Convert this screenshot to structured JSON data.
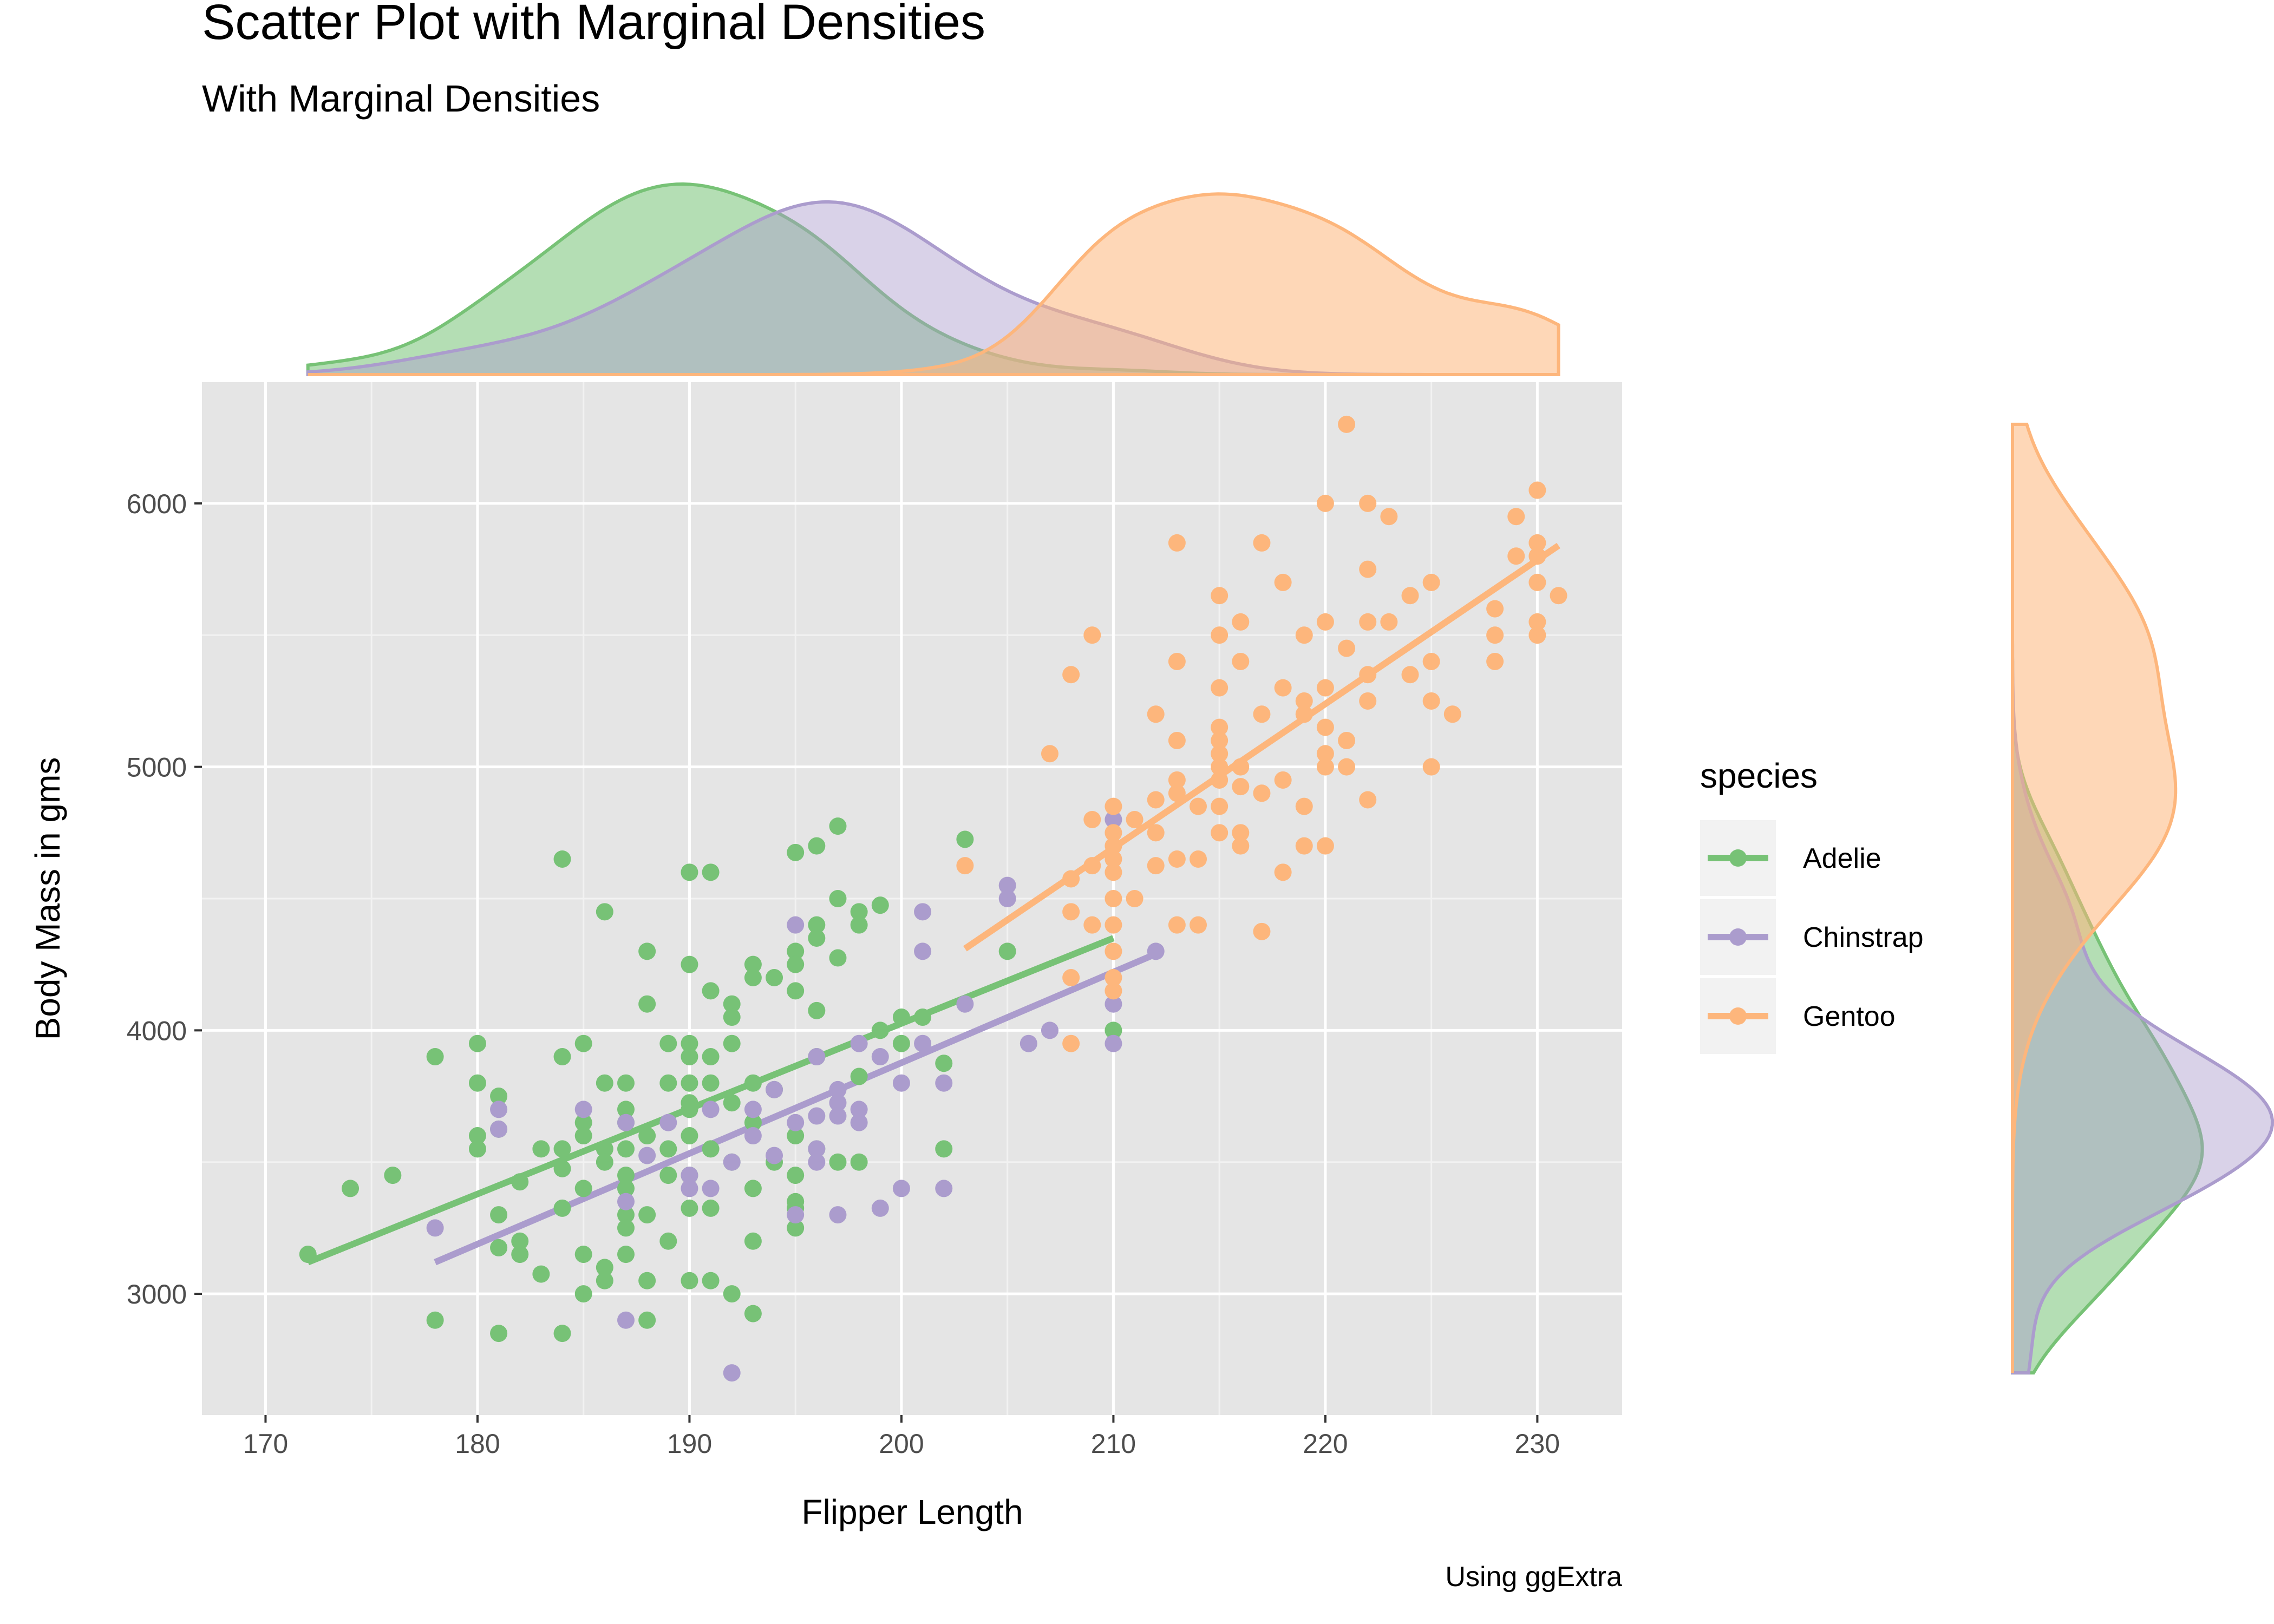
{
  "chart_data": {
    "type": "scatter",
    "title": "Scatter Plot with Marginal Densities",
    "subtitle": "With Marginal Densities",
    "xlabel": "Flipper Length",
    "ylabel": "Body Mass in gms",
    "caption": "Using ggExtra",
    "xlim": [
      167,
      234
    ],
    "ylim": [
      2540,
      6460
    ],
    "x_ticks": [
      170,
      180,
      190,
      200,
      210,
      220,
      230
    ],
    "y_ticks": [
      3000,
      4000,
      5000,
      6000
    ],
    "grid": true,
    "legend": {
      "title": "species",
      "placement": "right",
      "entries": [
        "Adelie",
        "Chinstrap",
        "Gentoo"
      ]
    },
    "marginal": "density",
    "series": [
      {
        "name": "Adelie",
        "color": "#77c276",
        "fill": "rgba(119,194,118,0.55)",
        "trend": [
          [
            172,
            3120
          ],
          [
            210,
            4350
          ]
        ],
        "points": [
          [
            172,
            3150
          ],
          [
            174,
            3400
          ],
          [
            176,
            3450
          ],
          [
            178,
            3900
          ],
          [
            178,
            2900
          ],
          [
            180,
            3950
          ],
          [
            180,
            3800
          ],
          [
            180,
            3600
          ],
          [
            180,
            3550
          ],
          [
            181,
            3750
          ],
          [
            181,
            3625
          ],
          [
            181,
            3300
          ],
          [
            181,
            3175
          ],
          [
            181,
            2850
          ],
          [
            182,
            3200
          ],
          [
            182,
            3150
          ],
          [
            182,
            3425
          ],
          [
            183,
            3550
          ],
          [
            183,
            3075
          ],
          [
            184,
            4650
          ],
          [
            184,
            3900
          ],
          [
            184,
            3475
          ],
          [
            184,
            3550
          ],
          [
            184,
            3325
          ],
          [
            184,
            2850
          ],
          [
            185,
            3950
          ],
          [
            185,
            3650
          ],
          [
            185,
            3600
          ],
          [
            185,
            3400
          ],
          [
            185,
            3150
          ],
          [
            185,
            3000
          ],
          [
            186,
            4450
          ],
          [
            186,
            3800
          ],
          [
            186,
            3550
          ],
          [
            186,
            3500
          ],
          [
            186,
            3100
          ],
          [
            186,
            3050
          ],
          [
            187,
            3800
          ],
          [
            187,
            3700
          ],
          [
            187,
            3650
          ],
          [
            187,
            3550
          ],
          [
            187,
            3450
          ],
          [
            187,
            3400
          ],
          [
            187,
            3300
          ],
          [
            187,
            3250
          ],
          [
            187,
            3150
          ],
          [
            188,
            4300
          ],
          [
            188,
            4100
          ],
          [
            188,
            3600
          ],
          [
            188,
            3300
          ],
          [
            188,
            3050
          ],
          [
            188,
            2900
          ],
          [
            189,
            3950
          ],
          [
            189,
            3800
          ],
          [
            189,
            3550
          ],
          [
            189,
            3450
          ],
          [
            189,
            3200
          ],
          [
            190,
            4600
          ],
          [
            190,
            4250
          ],
          [
            190,
            3950
          ],
          [
            190,
            3900
          ],
          [
            190,
            3800
          ],
          [
            190,
            3725
          ],
          [
            190,
            3700
          ],
          [
            190,
            3600
          ],
          [
            190,
            3450
          ],
          [
            190,
            3325
          ],
          [
            190,
            3050
          ],
          [
            191,
            4600
          ],
          [
            191,
            4150
          ],
          [
            191,
            3900
          ],
          [
            191,
            3800
          ],
          [
            191,
            3550
          ],
          [
            191,
            3325
          ],
          [
            191,
            3050
          ],
          [
            192,
            4100
          ],
          [
            192,
            4050
          ],
          [
            192,
            3950
          ],
          [
            192,
            3725
          ],
          [
            192,
            3500
          ],
          [
            192,
            3000
          ],
          [
            193,
            4250
          ],
          [
            193,
            4200
          ],
          [
            193,
            3800
          ],
          [
            193,
            3650
          ],
          [
            193,
            3400
          ],
          [
            193,
            3200
          ],
          [
            193,
            2925
          ],
          [
            194,
            4200
          ],
          [
            194,
            3775
          ],
          [
            194,
            3500
          ],
          [
            195,
            4675
          ],
          [
            195,
            4300
          ],
          [
            195,
            4250
          ],
          [
            195,
            4150
          ],
          [
            195,
            3600
          ],
          [
            195,
            3450
          ],
          [
            195,
            3350
          ],
          [
            195,
            3325
          ],
          [
            195,
            3250
          ],
          [
            196,
            4700
          ],
          [
            196,
            4400
          ],
          [
            196,
            4350
          ],
          [
            196,
            4075
          ],
          [
            196,
            3900
          ],
          [
            196,
            3550
          ],
          [
            197,
            4775
          ],
          [
            197,
            4500
          ],
          [
            197,
            4275
          ],
          [
            197,
            3500
          ],
          [
            198,
            4450
          ],
          [
            198,
            4400
          ],
          [
            198,
            3825
          ],
          [
            198,
            3500
          ],
          [
            199,
            4475
          ],
          [
            199,
            4000
          ],
          [
            200,
            4050
          ],
          [
            200,
            3950
          ],
          [
            201,
            4050
          ],
          [
            202,
            3875
          ],
          [
            202,
            3550
          ],
          [
            203,
            4725
          ],
          [
            205,
            4300
          ],
          [
            210,
            4000
          ]
        ]
      },
      {
        "name": "Chinstrap",
        "color": "#ab9ccd",
        "fill": "rgba(171,156,205,0.45)",
        "trend": [
          [
            178,
            3120
          ],
          [
            212,
            4290
          ]
        ],
        "points": [
          [
            178,
            3250
          ],
          [
            181,
            3700
          ],
          [
            181,
            3625
          ],
          [
            185,
            3700
          ],
          [
            187,
            3650
          ],
          [
            187,
            3350
          ],
          [
            187,
            2900
          ],
          [
            188,
            3525
          ],
          [
            189,
            3650
          ],
          [
            190,
            3450
          ],
          [
            190,
            3400
          ],
          [
            191,
            3700
          ],
          [
            191,
            3400
          ],
          [
            192,
            3500
          ],
          [
            192,
            2700
          ],
          [
            193,
            3700
          ],
          [
            193,
            3600
          ],
          [
            194,
            3775
          ],
          [
            194,
            3525
          ],
          [
            195,
            4400
          ],
          [
            195,
            3650
          ],
          [
            195,
            3300
          ],
          [
            196,
            3900
          ],
          [
            196,
            3675
          ],
          [
            196,
            3550
          ],
          [
            196,
            3500
          ],
          [
            197,
            3775
          ],
          [
            197,
            3725
          ],
          [
            197,
            3675
          ],
          [
            197,
            3300
          ],
          [
            198,
            3950
          ],
          [
            198,
            3700
          ],
          [
            198,
            3650
          ],
          [
            199,
            3900
          ],
          [
            199,
            3325
          ],
          [
            200,
            3800
          ],
          [
            200,
            3400
          ],
          [
            201,
            4450
          ],
          [
            201,
            4300
          ],
          [
            201,
            3950
          ],
          [
            202,
            3800
          ],
          [
            202,
            3400
          ],
          [
            203,
            4100
          ],
          [
            205,
            4550
          ],
          [
            205,
            4500
          ],
          [
            206,
            3950
          ],
          [
            207,
            4000
          ],
          [
            210,
            4800
          ],
          [
            210,
            4100
          ],
          [
            210,
            3950
          ],
          [
            212,
            4300
          ]
        ]
      },
      {
        "name": "Gentoo",
        "color": "#fdb67c",
        "fill": "rgba(253,182,124,0.55)",
        "trend": [
          [
            203,
            4310
          ],
          [
            231,
            5840
          ]
        ],
        "points": [
          [
            203,
            4625
          ],
          [
            207,
            5050
          ],
          [
            208,
            5350
          ],
          [
            208,
            4575
          ],
          [
            208,
            4450
          ],
          [
            208,
            4200
          ],
          [
            208,
            3950
          ],
          [
            209,
            5500
          ],
          [
            209,
            4800
          ],
          [
            209,
            4625
          ],
          [
            209,
            4400
          ],
          [
            210,
            4850
          ],
          [
            210,
            4750
          ],
          [
            210,
            4700
          ],
          [
            210,
            4650
          ],
          [
            210,
            4600
          ],
          [
            210,
            4500
          ],
          [
            210,
            4400
          ],
          [
            210,
            4300
          ],
          [
            210,
            4200
          ],
          [
            210,
            4150
          ],
          [
            211,
            4800
          ],
          [
            211,
            4500
          ],
          [
            212,
            5200
          ],
          [
            212,
            4875
          ],
          [
            212,
            4750
          ],
          [
            212,
            4625
          ],
          [
            213,
            5850
          ],
          [
            213,
            5400
          ],
          [
            213,
            5100
          ],
          [
            213,
            4950
          ],
          [
            213,
            4900
          ],
          [
            213,
            4650
          ],
          [
            213,
            4400
          ],
          [
            214,
            4850
          ],
          [
            214,
            4650
          ],
          [
            214,
            4400
          ],
          [
            215,
            5650
          ],
          [
            215,
            5500
          ],
          [
            215,
            5300
          ],
          [
            215,
            5150
          ],
          [
            215,
            5100
          ],
          [
            215,
            5050
          ],
          [
            215,
            5000
          ],
          [
            215,
            4950
          ],
          [
            215,
            4850
          ],
          [
            215,
            4750
          ],
          [
            216,
            5550
          ],
          [
            216,
            5400
          ],
          [
            216,
            5000
          ],
          [
            216,
            4925
          ],
          [
            216,
            4750
          ],
          [
            216,
            4700
          ],
          [
            217,
            5850
          ],
          [
            217,
            5200
          ],
          [
            217,
            4900
          ],
          [
            217,
            4375
          ],
          [
            218,
            5700
          ],
          [
            218,
            5300
          ],
          [
            218,
            4950
          ],
          [
            218,
            4600
          ],
          [
            219,
            5500
          ],
          [
            219,
            5250
          ],
          [
            219,
            5200
          ],
          [
            219,
            4850
          ],
          [
            219,
            4700
          ],
          [
            220,
            6000
          ],
          [
            220,
            5550
          ],
          [
            220,
            5300
          ],
          [
            220,
            5150
          ],
          [
            220,
            5050
          ],
          [
            220,
            5000
          ],
          [
            220,
            4700
          ],
          [
            221,
            6300
          ],
          [
            221,
            5450
          ],
          [
            221,
            5100
          ],
          [
            221,
            5000
          ],
          [
            222,
            6000
          ],
          [
            222,
            5750
          ],
          [
            222,
            5550
          ],
          [
            222,
            5350
          ],
          [
            222,
            5250
          ],
          [
            222,
            4875
          ],
          [
            223,
            5950
          ],
          [
            223,
            5550
          ],
          [
            224,
            5650
          ],
          [
            224,
            5350
          ],
          [
            225,
            5700
          ],
          [
            225,
            5400
          ],
          [
            225,
            5250
          ],
          [
            225,
            5000
          ],
          [
            226,
            5200
          ],
          [
            228,
            5600
          ],
          [
            228,
            5500
          ],
          [
            228,
            5400
          ],
          [
            229,
            5950
          ],
          [
            229,
            5800
          ],
          [
            230,
            6050
          ],
          [
            230,
            5850
          ],
          [
            230,
            5800
          ],
          [
            230,
            5700
          ],
          [
            230,
            5550
          ],
          [
            230,
            5500
          ],
          [
            231,
            5650
          ]
        ]
      }
    ]
  }
}
